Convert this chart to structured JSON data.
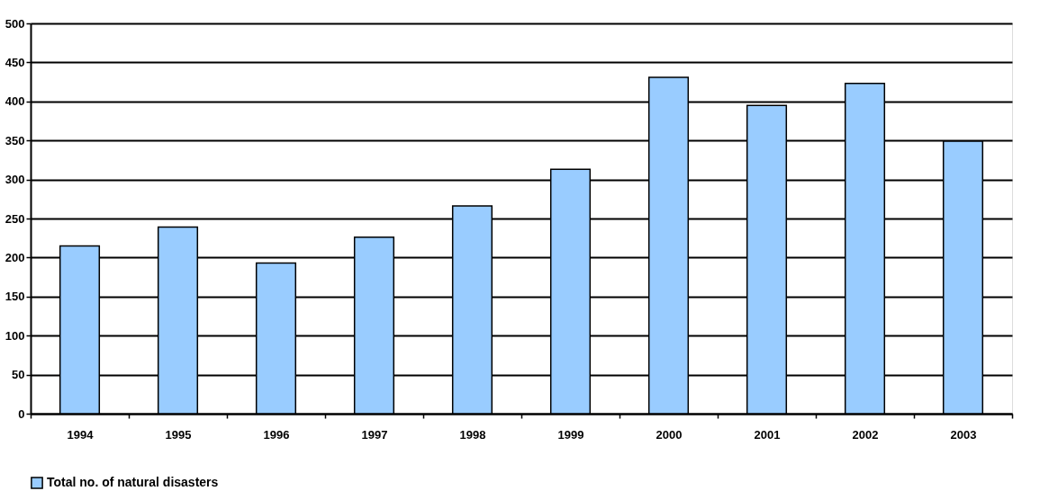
{
  "chart_data": {
    "type": "bar",
    "categories": [
      "1994",
      "1995",
      "1996",
      "1997",
      "1998",
      "1999",
      "2000",
      "2001",
      "2002",
      "2003"
    ],
    "series": [
      {
        "name": "Total no. of natural disasters",
        "color": "#99ccff",
        "values": [
          215,
          239,
          193,
          226,
          266,
          313,
          431,
          395,
          423,
          349
        ]
      }
    ],
    "ylim": [
      0,
      500
    ],
    "yticks": [
      0,
      50,
      100,
      150,
      200,
      250,
      300,
      350,
      400,
      450,
      500
    ],
    "grid": "y",
    "legend": "bottom"
  }
}
